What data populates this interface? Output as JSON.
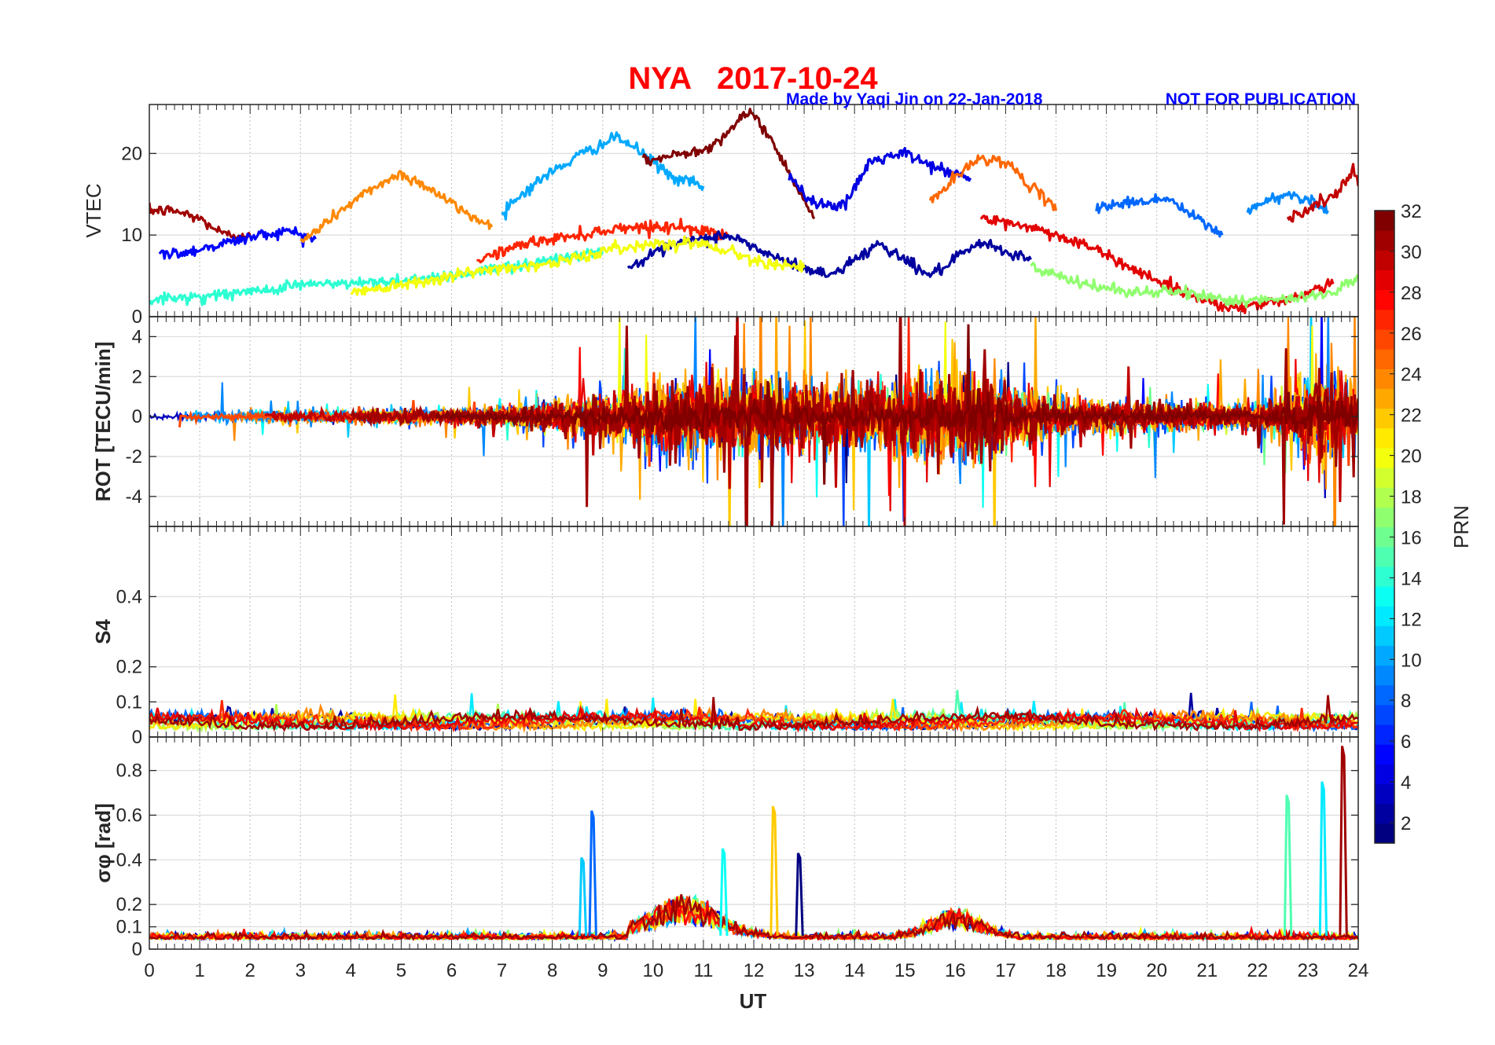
{
  "figure": {
    "title": "NYA   2017-10-24",
    "credit": "Made by Yaqi Jin on 22-Jan-2018",
    "notice": "NOT FOR PUBLICATION",
    "colors": {
      "title": "#ff0000",
      "credit": "#0000ff",
      "notice": "#0000ff"
    }
  },
  "colorbar": {
    "label": "PRN",
    "range": [
      1,
      32
    ],
    "ticks": [
      "2",
      "4",
      "6",
      "8",
      "10",
      "12",
      "14",
      "16",
      "18",
      "20",
      "22",
      "24",
      "26",
      "28",
      "30",
      "32"
    ],
    "colormap": "jet"
  },
  "chart_data": [
    {
      "type": "line",
      "panel": "vtec",
      "ylabel": "VTEC",
      "ylim": [
        0,
        26
      ],
      "yticks": [
        "0",
        "10",
        "20"
      ],
      "xlim": [
        0,
        24
      ],
      "grid": true,
      "series_count": 32,
      "series": [
        {
          "prn": 31,
          "x": [
            0,
            0.5,
            1,
            1.5,
            2
          ],
          "y": [
            13,
            13,
            12,
            10,
            10
          ]
        },
        {
          "prn": 5,
          "x": [
            0.2,
            0.8,
            1.5,
            2.2,
            2.8,
            3.3
          ],
          "y": [
            7.5,
            8,
            9,
            10,
            10.5,
            9.5
          ]
        },
        {
          "prn": 24,
          "x": [
            3,
            3.8,
            4.5,
            5,
            5.5,
            6.2,
            6.8
          ],
          "y": [
            9,
            13,
            16,
            17.5,
            16,
            13,
            11
          ]
        },
        {
          "prn": 10,
          "x": [
            7,
            7.8,
            8.6,
            9.3,
            9.8,
            10.4,
            11
          ],
          "y": [
            13,
            17,
            20,
            22,
            20,
            17,
            16
          ]
        },
        {
          "prn": 32,
          "x": [
            9.8,
            10.6,
            11.2,
            11.7,
            12,
            12.5,
            13.2
          ],
          "y": [
            19,
            20,
            21,
            24,
            25,
            20,
            12
          ]
        },
        {
          "prn": 4,
          "x": [
            12.7,
            13.2,
            13.8,
            14.3,
            15,
            15.7,
            16.3
          ],
          "y": [
            17,
            14,
            13.5,
            19,
            20,
            18,
            17
          ]
        },
        {
          "prn": 25,
          "x": [
            15.5,
            16,
            16.5,
            17,
            17.5,
            18
          ],
          "y": [
            14,
            17,
            19.5,
            19,
            16,
            13
          ]
        },
        {
          "prn": 8,
          "x": [
            18.8,
            19.5,
            20.2,
            20.8,
            21.3
          ],
          "y": [
            13.5,
            14,
            14.5,
            12,
            10
          ]
        },
        {
          "prn": 9,
          "x": [
            21.8,
            22.5,
            23,
            23.4
          ],
          "y": [
            13,
            15,
            14.5,
            13
          ]
        },
        {
          "prn": 30,
          "x": [
            22.6,
            23.1,
            23.6,
            23.9,
            24
          ],
          "y": [
            12,
            13.5,
            15,
            18,
            16
          ]
        },
        {
          "prn": 27,
          "x": [
            6.5,
            7.5,
            8.5,
            9.5,
            10.5,
            11.5
          ],
          "y": [
            7,
            9,
            10,
            11,
            11,
            10
          ]
        },
        {
          "prn": 2,
          "x": [
            9.5,
            10.5,
            11.5,
            12.5,
            13.5,
            14.5,
            15.5,
            16.5,
            17.5
          ],
          "y": [
            6,
            9,
            10,
            7,
            5,
            9,
            5,
            9,
            7
          ]
        },
        {
          "prn": 29,
          "x": [
            16.5,
            17.5,
            18.5,
            19.5,
            20.5,
            21.5,
            22.5,
            23.5
          ],
          "y": [
            12,
            11,
            9,
            6,
            3,
            1,
            2,
            4
          ]
        },
        {
          "prn": 14,
          "x": [
            0,
            1,
            2,
            3,
            4,
            5,
            6,
            7,
            8,
            9
          ],
          "y": [
            2,
            2.5,
            3,
            4,
            4,
            4.5,
            5,
            6,
            7,
            8
          ]
        },
        {
          "prn": 20,
          "x": [
            4,
            5,
            6,
            7,
            8,
            9,
            10,
            11,
            12,
            13
          ],
          "y": [
            3,
            4,
            5,
            6,
            6.5,
            8,
            9,
            9,
            7,
            6
          ]
        },
        {
          "prn": 17,
          "x": [
            17.5,
            18.5,
            19.5,
            20.5,
            21.5,
            22.5,
            23.5,
            24
          ],
          "y": [
            6,
            4,
            3,
            3,
            2,
            2,
            3,
            5
          ]
        }
      ]
    },
    {
      "type": "line",
      "panel": "rot",
      "ylabel": "ROT [TECU/min]",
      "ylim": [
        -5.5,
        5
      ],
      "yticks": [
        "-4",
        "-2",
        "0",
        "2",
        "4"
      ],
      "xlim": [
        0,
        24
      ],
      "grid": true,
      "series_count": 32,
      "envelope": {
        "x": [
          0,
          6,
          8,
          10,
          12,
          13,
          14,
          16,
          17,
          18,
          22,
          23.5,
          24
        ],
        "amplitude": [
          0.4,
          0.5,
          1.0,
          2.2,
          2.8,
          2.0,
          2.2,
          3.0,
          2.6,
          1.2,
          0.8,
          3.5,
          1.5
        ]
      },
      "series": []
    },
    {
      "type": "line",
      "panel": "s4",
      "ylabel": "S4",
      "ylim": [
        0,
        0.6
      ],
      "yticks": [
        "0",
        "0.1",
        "0.2",
        "0.4"
      ],
      "xlim": [
        0,
        24
      ],
      "grid": true,
      "series_count": 32,
      "series": []
    },
    {
      "type": "line",
      "panel": "sigma_phi",
      "ylabel": "σφ [rad]",
      "ylim": [
        0,
        0.95
      ],
      "yticks": [
        "0",
        "0.1",
        "0.2",
        "0.4",
        "0.6",
        "0.8"
      ],
      "xlim": [
        0,
        24
      ],
      "xlabel": "UT",
      "xticks": [
        "0",
        "1",
        "2",
        "3",
        "4",
        "5",
        "6",
        "7",
        "8",
        "9",
        "10",
        "11",
        "12",
        "13",
        "14",
        "15",
        "16",
        "17",
        "18",
        "19",
        "20",
        "21",
        "22",
        "23",
        "24"
      ],
      "grid": true,
      "series_count": 32,
      "spikes": [
        {
          "prn": 11,
          "x": 8.6,
          "y": 0.41
        },
        {
          "prn": 8,
          "x": 8.8,
          "y": 0.62
        },
        {
          "prn": 13,
          "x": 11.4,
          "y": 0.45
        },
        {
          "prn": 22,
          "x": 12.4,
          "y": 0.64
        },
        {
          "prn": 1,
          "x": 12.9,
          "y": 0.43
        },
        {
          "prn": 15,
          "x": 22.6,
          "y": 0.69
        },
        {
          "prn": 12,
          "x": 23.3,
          "y": 0.75
        },
        {
          "prn": 31,
          "x": 23.7,
          "y": 0.91
        }
      ]
    }
  ]
}
